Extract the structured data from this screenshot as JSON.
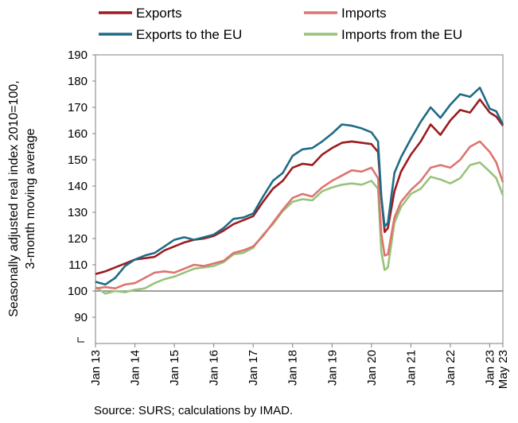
{
  "chart_data": {
    "type": "line",
    "ylabel": [
      "Seasonally adjusted real index 2010=100,",
      "3-month moving average"
    ],
    "ylim": [
      80,
      190
    ],
    "y_ticks": [
      90,
      100,
      110,
      120,
      130,
      140,
      150,
      160,
      170,
      180,
      190
    ],
    "x_tick_labels": [
      "Jan 13",
      "Jan 14",
      "Jan 15",
      "Jan 16",
      "Jan 17",
      "Jan 18",
      "Jan 19",
      "Jan 20",
      "Jan 21",
      "Jan 22",
      "Jan 23",
      "May 23"
    ],
    "x_range": [
      "2013-01",
      "2023-05"
    ],
    "reference_line": 100,
    "grid": false,
    "legend_position": "top",
    "series": [
      {
        "name": "Exports",
        "color": "#9b1c1f",
        "points": [
          [
            "2013-01",
            106.5
          ],
          [
            "2013-04",
            107.5
          ],
          [
            "2013-07",
            109
          ],
          [
            "2013-10",
            110.5
          ],
          [
            "2014-01",
            112
          ],
          [
            "2014-04",
            112.5
          ],
          [
            "2014-07",
            113
          ],
          [
            "2014-10",
            115.5
          ],
          [
            "2015-01",
            117
          ],
          [
            "2015-04",
            118.5
          ],
          [
            "2015-07",
            119.5
          ],
          [
            "2015-10",
            120
          ],
          [
            "2016-01",
            121
          ],
          [
            "2016-04",
            123
          ],
          [
            "2016-07",
            125.5
          ],
          [
            "2016-10",
            127
          ],
          [
            "2017-01",
            128.5
          ],
          [
            "2017-04",
            134
          ],
          [
            "2017-07",
            139
          ],
          [
            "2017-10",
            142
          ],
          [
            "2018-01",
            147
          ],
          [
            "2018-04",
            148.5
          ],
          [
            "2018-07",
            148
          ],
          [
            "2018-10",
            152
          ],
          [
            "2019-01",
            154.5
          ],
          [
            "2019-04",
            156.5
          ],
          [
            "2019-07",
            157
          ],
          [
            "2019-10",
            156.5
          ],
          [
            "2020-01",
            156
          ],
          [
            "2020-03",
            153
          ],
          [
            "2020-04",
            136
          ],
          [
            "2020-05",
            122.5
          ],
          [
            "2020-06",
            124
          ],
          [
            "2020-08",
            138
          ],
          [
            "2020-10",
            145.5
          ],
          [
            "2021-01",
            152
          ],
          [
            "2021-04",
            157
          ],
          [
            "2021-07",
            163.5
          ],
          [
            "2021-10",
            159.5
          ],
          [
            "2022-01",
            165
          ],
          [
            "2022-04",
            169
          ],
          [
            "2022-07",
            168
          ],
          [
            "2022-10",
            173
          ],
          [
            "2023-01",
            168
          ],
          [
            "2023-03",
            166.5
          ],
          [
            "2023-05",
            163
          ]
        ]
      },
      {
        "name": "Imports",
        "color": "#dd7470",
        "points": [
          [
            "2013-01",
            101
          ],
          [
            "2013-04",
            101.5
          ],
          [
            "2013-07",
            101
          ],
          [
            "2013-10",
            102.5
          ],
          [
            "2014-01",
            103
          ],
          [
            "2014-04",
            105
          ],
          [
            "2014-07",
            107
          ],
          [
            "2014-10",
            107.5
          ],
          [
            "2015-01",
            107
          ],
          [
            "2015-04",
            108.5
          ],
          [
            "2015-07",
            110
          ],
          [
            "2015-10",
            109.5
          ],
          [
            "2016-01",
            110.5
          ],
          [
            "2016-04",
            111.5
          ],
          [
            "2016-07",
            114.5
          ],
          [
            "2016-10",
            115.5
          ],
          [
            "2017-01",
            117
          ],
          [
            "2017-04",
            121
          ],
          [
            "2017-07",
            126
          ],
          [
            "2017-10",
            131
          ],
          [
            "2018-01",
            135.5
          ],
          [
            "2018-04",
            137
          ],
          [
            "2018-07",
            136
          ],
          [
            "2018-10",
            139.5
          ],
          [
            "2019-01",
            142
          ],
          [
            "2019-04",
            144
          ],
          [
            "2019-07",
            146
          ],
          [
            "2019-10",
            145.5
          ],
          [
            "2020-01",
            147
          ],
          [
            "2020-03",
            143
          ],
          [
            "2020-04",
            122
          ],
          [
            "2020-05",
            113.5
          ],
          [
            "2020-06",
            114
          ],
          [
            "2020-08",
            128
          ],
          [
            "2020-10",
            134
          ],
          [
            "2021-01",
            138.5
          ],
          [
            "2021-04",
            142
          ],
          [
            "2021-07",
            147
          ],
          [
            "2021-10",
            148
          ],
          [
            "2022-01",
            147
          ],
          [
            "2022-04",
            150
          ],
          [
            "2022-07",
            155
          ],
          [
            "2022-10",
            157
          ],
          [
            "2023-01",
            153
          ],
          [
            "2023-03",
            149
          ],
          [
            "2023-05",
            141.5
          ]
        ]
      },
      {
        "name": "Exports to the EU",
        "color": "#1f6b86",
        "points": [
          [
            "2013-01",
            103.5
          ],
          [
            "2013-04",
            102.5
          ],
          [
            "2013-07",
            105
          ],
          [
            "2013-10",
            109.5
          ],
          [
            "2014-01",
            112
          ],
          [
            "2014-04",
            113.5
          ],
          [
            "2014-07",
            114.5
          ],
          [
            "2014-10",
            117
          ],
          [
            "2015-01",
            119.5
          ],
          [
            "2015-04",
            120.5
          ],
          [
            "2015-07",
            119.5
          ],
          [
            "2015-10",
            120.5
          ],
          [
            "2016-01",
            121.5
          ],
          [
            "2016-04",
            124
          ],
          [
            "2016-07",
            127.5
          ],
          [
            "2016-10",
            128
          ],
          [
            "2017-01",
            129.5
          ],
          [
            "2017-04",
            136
          ],
          [
            "2017-07",
            142
          ],
          [
            "2017-10",
            145
          ],
          [
            "2018-01",
            151.5
          ],
          [
            "2018-04",
            154
          ],
          [
            "2018-07",
            154.5
          ],
          [
            "2018-10",
            157
          ],
          [
            "2019-01",
            160
          ],
          [
            "2019-04",
            163.5
          ],
          [
            "2019-07",
            163
          ],
          [
            "2019-10",
            162
          ],
          [
            "2020-01",
            160.5
          ],
          [
            "2020-03",
            157
          ],
          [
            "2020-04",
            136
          ],
          [
            "2020-05",
            124.5
          ],
          [
            "2020-06",
            126
          ],
          [
            "2020-08",
            145
          ],
          [
            "2020-10",
            151
          ],
          [
            "2021-01",
            158
          ],
          [
            "2021-04",
            164.5
          ],
          [
            "2021-07",
            170
          ],
          [
            "2021-10",
            166
          ],
          [
            "2022-01",
            171
          ],
          [
            "2022-04",
            175
          ],
          [
            "2022-07",
            174
          ],
          [
            "2022-10",
            177.5
          ],
          [
            "2023-01",
            169.5
          ],
          [
            "2023-03",
            168.5
          ],
          [
            "2023-05",
            163.5
          ]
        ]
      },
      {
        "name": "Imports from the EU",
        "color": "#98c37a",
        "points": [
          [
            "2013-01",
            101.5
          ],
          [
            "2013-04",
            99
          ],
          [
            "2013-07",
            100
          ],
          [
            "2013-10",
            99.5
          ],
          [
            "2014-01",
            100.5
          ],
          [
            "2014-04",
            101
          ],
          [
            "2014-07",
            103
          ],
          [
            "2014-10",
            104.5
          ],
          [
            "2015-01",
            105.5
          ],
          [
            "2015-04",
            107
          ],
          [
            "2015-07",
            108.5
          ],
          [
            "2015-10",
            109
          ],
          [
            "2016-01",
            109.5
          ],
          [
            "2016-04",
            111
          ],
          [
            "2016-07",
            114
          ],
          [
            "2016-10",
            114.5
          ],
          [
            "2017-01",
            116.5
          ],
          [
            "2017-04",
            121.5
          ],
          [
            "2017-07",
            125.5
          ],
          [
            "2017-10",
            130.5
          ],
          [
            "2018-01",
            134
          ],
          [
            "2018-04",
            135
          ],
          [
            "2018-07",
            134.5
          ],
          [
            "2018-10",
            138
          ],
          [
            "2019-01",
            139.5
          ],
          [
            "2019-04",
            140.5
          ],
          [
            "2019-07",
            141
          ],
          [
            "2019-10",
            140.5
          ],
          [
            "2020-01",
            142
          ],
          [
            "2020-03",
            139
          ],
          [
            "2020-04",
            115
          ],
          [
            "2020-05",
            108
          ],
          [
            "2020-06",
            109
          ],
          [
            "2020-08",
            126
          ],
          [
            "2020-10",
            132
          ],
          [
            "2021-01",
            137
          ],
          [
            "2021-04",
            139
          ],
          [
            "2021-07",
            143.5
          ],
          [
            "2021-10",
            142.5
          ],
          [
            "2022-01",
            141
          ],
          [
            "2022-04",
            143
          ],
          [
            "2022-07",
            148
          ],
          [
            "2022-10",
            149
          ],
          [
            "2023-01",
            145.5
          ],
          [
            "2023-03",
            143
          ],
          [
            "2023-05",
            136.5
          ]
        ]
      }
    ]
  },
  "source": "Source: SURS; calculations by IMAD."
}
